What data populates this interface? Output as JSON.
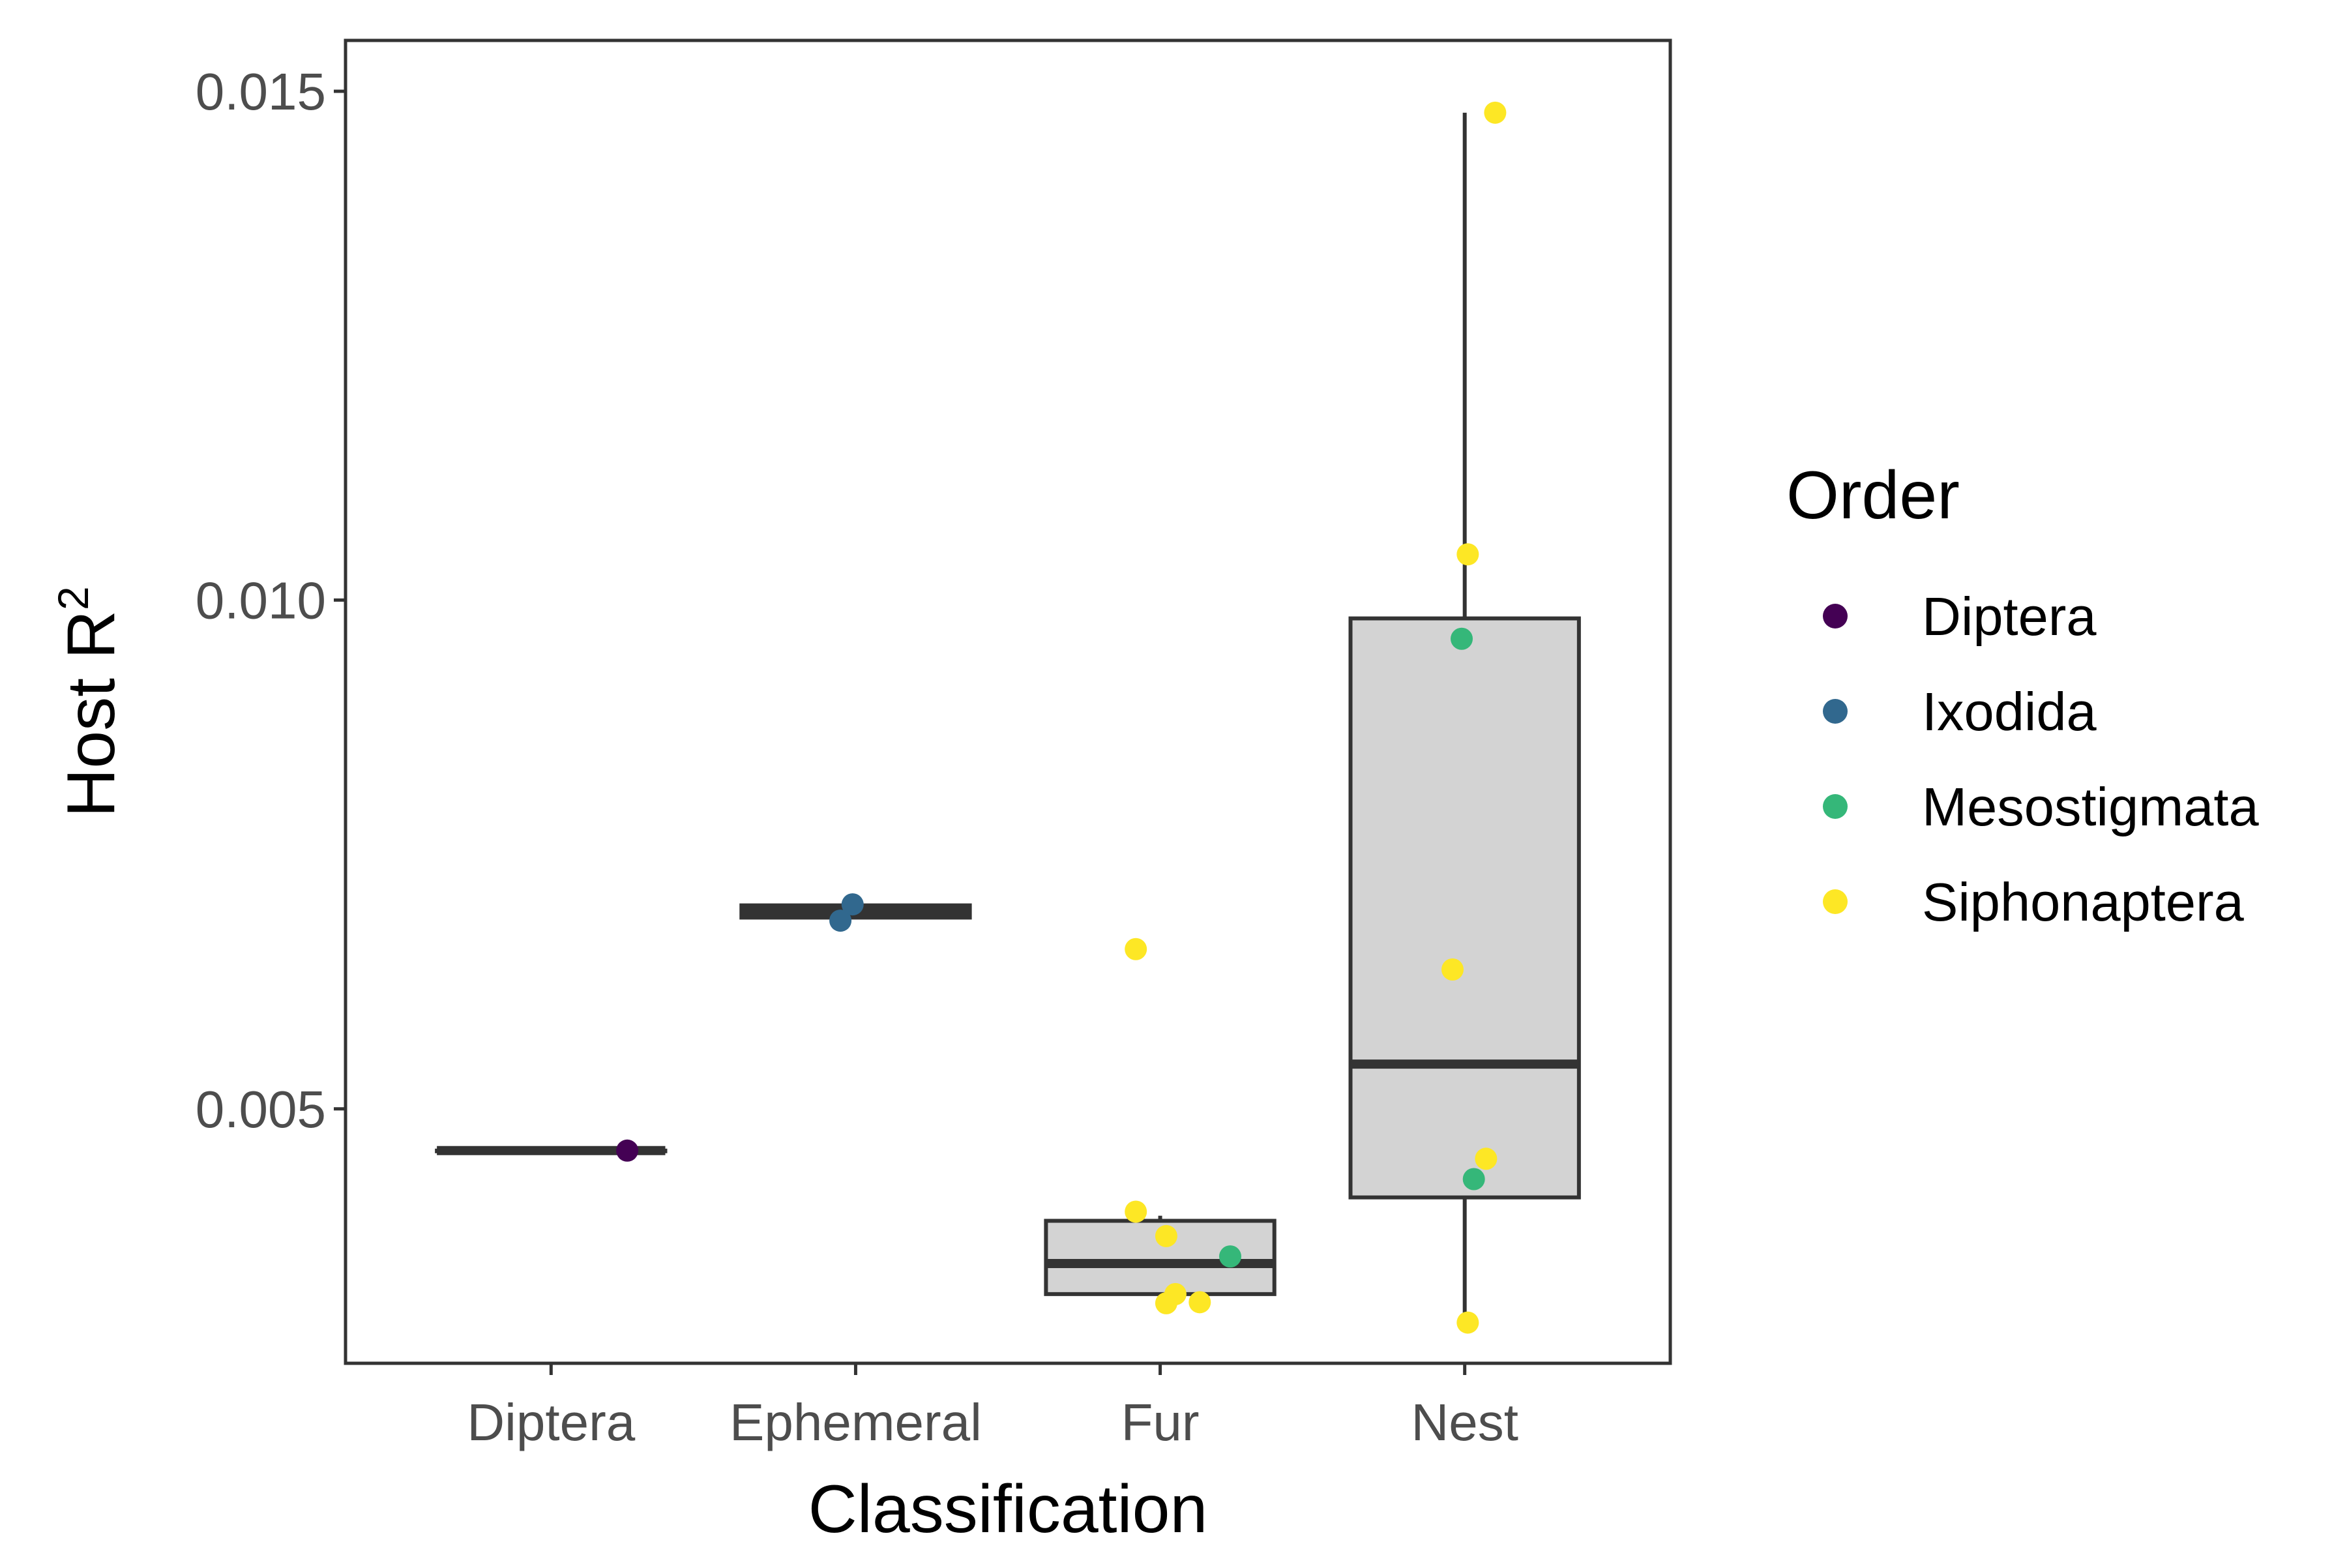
{
  "chart_data": {
    "type": "box",
    "xlabel": "Classification",
    "ylabel": {
      "text": "Host R",
      "superscript": "2"
    },
    "categories": [
      "Diptera",
      "Ephemeral",
      "Fur",
      "Nest"
    ],
    "ylim": [
      0.0025,
      0.0155
    ],
    "yticks": [
      0.005,
      0.01,
      0.015
    ],
    "ytick_labels": [
      "0.005",
      "0.010",
      "0.015"
    ],
    "grid": false,
    "box_fill": "#d3d3d3",
    "box_stroke": "#333333",
    "boxes": [
      {
        "category": "Diptera",
        "lower_whisker": 0.00459,
        "q1": 0.00459,
        "median": 0.00459,
        "q3": 0.00459,
        "upper_whisker": 0.00459
      },
      {
        "category": "Ephemeral",
        "lower_whisker": 0.00688,
        "q1": 0.00688,
        "median": 0.00694,
        "q3": 0.007,
        "upper_whisker": 0.007
      },
      {
        "category": "Fur",
        "lower_whisker": 0.00303,
        "q1": 0.00318,
        "median": 0.00348,
        "q3": 0.0039,
        "upper_whisker": 0.00395
      },
      {
        "category": "Nest",
        "lower_whisker": 0.00283,
        "q1": 0.00413,
        "median": 0.00544,
        "q3": 0.00982,
        "upper_whisker": 0.01479
      }
    ],
    "legend": {
      "title": "Order",
      "position": "right",
      "entries": [
        {
          "name": "Diptera",
          "color": "#440154"
        },
        {
          "name": "Ixodida",
          "color": "#31688e"
        },
        {
          "name": "Mesostigmata",
          "color": "#35b779"
        },
        {
          "name": "Siphonaptera",
          "color": "#fde725"
        }
      ]
    },
    "points": [
      {
        "category": "Diptera",
        "jitter": 0.25,
        "y": 0.00459,
        "order": "Diptera"
      },
      {
        "category": "Ephemeral",
        "jitter": -0.05,
        "y": 0.00685,
        "order": "Ixodida"
      },
      {
        "category": "Ephemeral",
        "jitter": -0.01,
        "y": 0.00701,
        "order": "Ixodida"
      },
      {
        "category": "Fur",
        "jitter": -0.08,
        "y": 0.00657,
        "order": "Siphonaptera"
      },
      {
        "category": "Fur",
        "jitter": -0.08,
        "y": 0.00399,
        "order": "Siphonaptera"
      },
      {
        "category": "Fur",
        "jitter": 0.02,
        "y": 0.00375,
        "order": "Siphonaptera"
      },
      {
        "category": "Fur",
        "jitter": 0.05,
        "y": 0.00318,
        "order": "Siphonaptera"
      },
      {
        "category": "Fur",
        "jitter": 0.02,
        "y": 0.00309,
        "order": "Siphonaptera"
      },
      {
        "category": "Fur",
        "jitter": 0.13,
        "y": 0.0031,
        "order": "Siphonaptera"
      },
      {
        "category": "Fur",
        "jitter": 0.23,
        "y": 0.00355,
        "order": "Mesostigmata"
      },
      {
        "category": "Nest",
        "jitter": 0.1,
        "y": 0.01479,
        "order": "Siphonaptera"
      },
      {
        "category": "Nest",
        "jitter": 0.01,
        "y": 0.01045,
        "order": "Siphonaptera"
      },
      {
        "category": "Nest",
        "jitter": -0.01,
        "y": 0.00962,
        "order": "Mesostigmata"
      },
      {
        "category": "Nest",
        "jitter": -0.04,
        "y": 0.00637,
        "order": "Siphonaptera"
      },
      {
        "category": "Nest",
        "jitter": 0.07,
        "y": 0.00451,
        "order": "Siphonaptera"
      },
      {
        "category": "Nest",
        "jitter": 0.03,
        "y": 0.00431,
        "order": "Mesostigmata"
      },
      {
        "category": "Nest",
        "jitter": 0.01,
        "y": 0.0029,
        "order": "Siphonaptera"
      }
    ]
  }
}
